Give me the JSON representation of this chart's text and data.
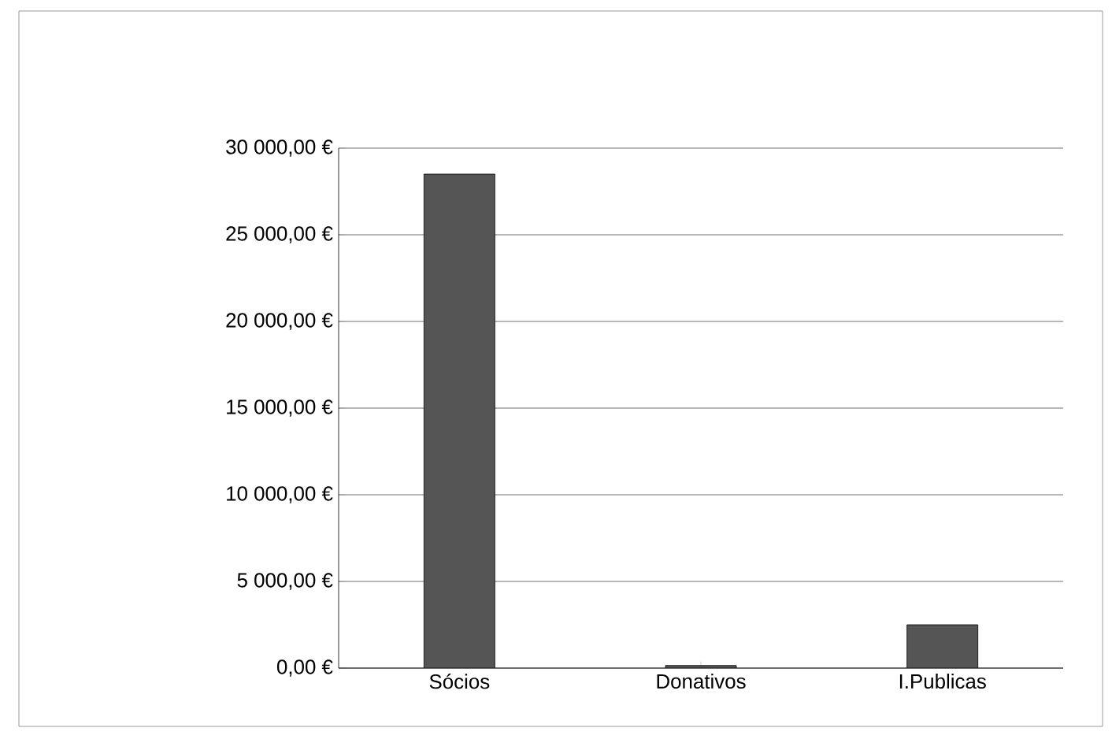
{
  "chart_data": {
    "type": "bar",
    "categories": [
      "Sócios",
      "Donativos",
      "I.Publicas"
    ],
    "values": [
      28500,
      150,
      2500
    ],
    "color": "#555555",
    "ylim": [
      0,
      30000
    ],
    "yticks": [
      {
        "value": 0,
        "label": "0,00 €"
      },
      {
        "value": 5000,
        "label": "5 000,00 €"
      },
      {
        "value": 10000,
        "label": "10 000,00 €"
      },
      {
        "value": 15000,
        "label": "15 000,00 €"
      },
      {
        "value": 20000,
        "label": "20 000,00 €"
      },
      {
        "value": 25000,
        "label": "25 000,00 €"
      },
      {
        "value": 30000,
        "label": "30 000,00 €"
      }
    ],
    "grid": "y"
  }
}
